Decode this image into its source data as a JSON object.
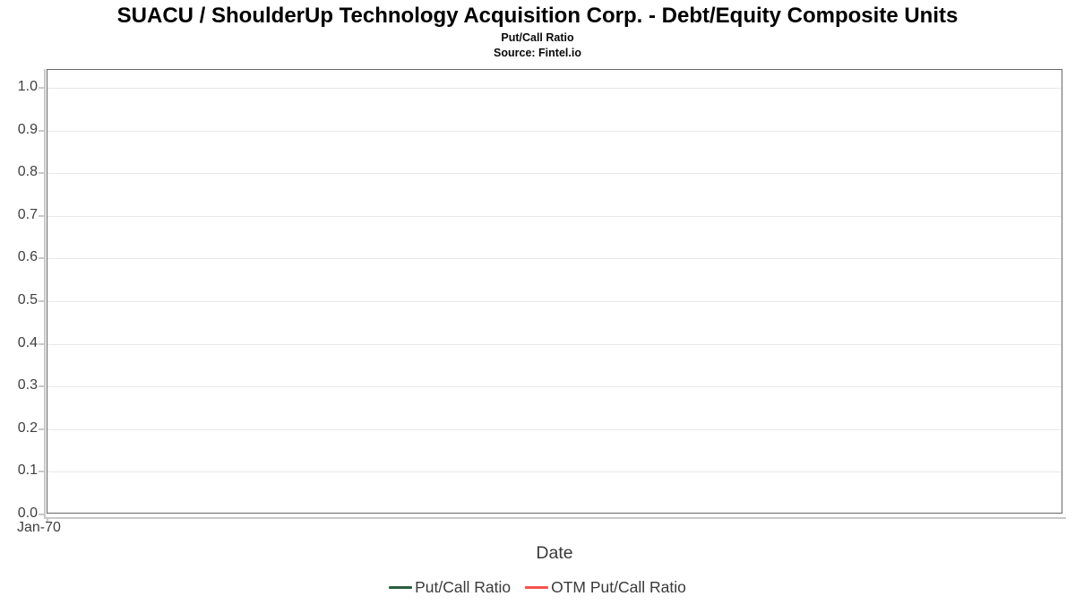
{
  "chart_data": {
    "type": "line",
    "title": "SUACU / ShoulderUp Technology Acquisition Corp. - Debt/Equity Composite Units",
    "subtitle": "Put/Call Ratio",
    "source": "Source: Fintel.io",
    "xlabel": "Date",
    "ylabel": "",
    "ylim": [
      0.0,
      1.04
    ],
    "yticks": [
      0.0,
      0.1,
      0.2,
      0.3,
      0.4,
      0.5,
      0.6,
      0.7,
      0.8,
      0.9,
      1.0
    ],
    "ytick_labels": [
      "0.0",
      "0.1",
      "0.2",
      "0.3",
      "0.4",
      "0.5",
      "0.6",
      "0.7",
      "0.8",
      "0.9",
      "1.0"
    ],
    "xtick_labels": [
      "Jan-70"
    ],
    "grid": true,
    "legend_position": "bottom",
    "series": [
      {
        "name": "Put/Call Ratio",
        "color": "#2a5e3c",
        "x": [],
        "values": []
      },
      {
        "name": "OTM Put/Call Ratio",
        "color": "#f4534e",
        "x": [],
        "values": []
      }
    ]
  },
  "colors": {
    "plot_border": "#666666",
    "gridline": "#e8e8e8",
    "axis_tick": "#c9c9c9",
    "axis_text": "#3f3f3f",
    "title_text": "#000000",
    "background": "#ffffff"
  }
}
